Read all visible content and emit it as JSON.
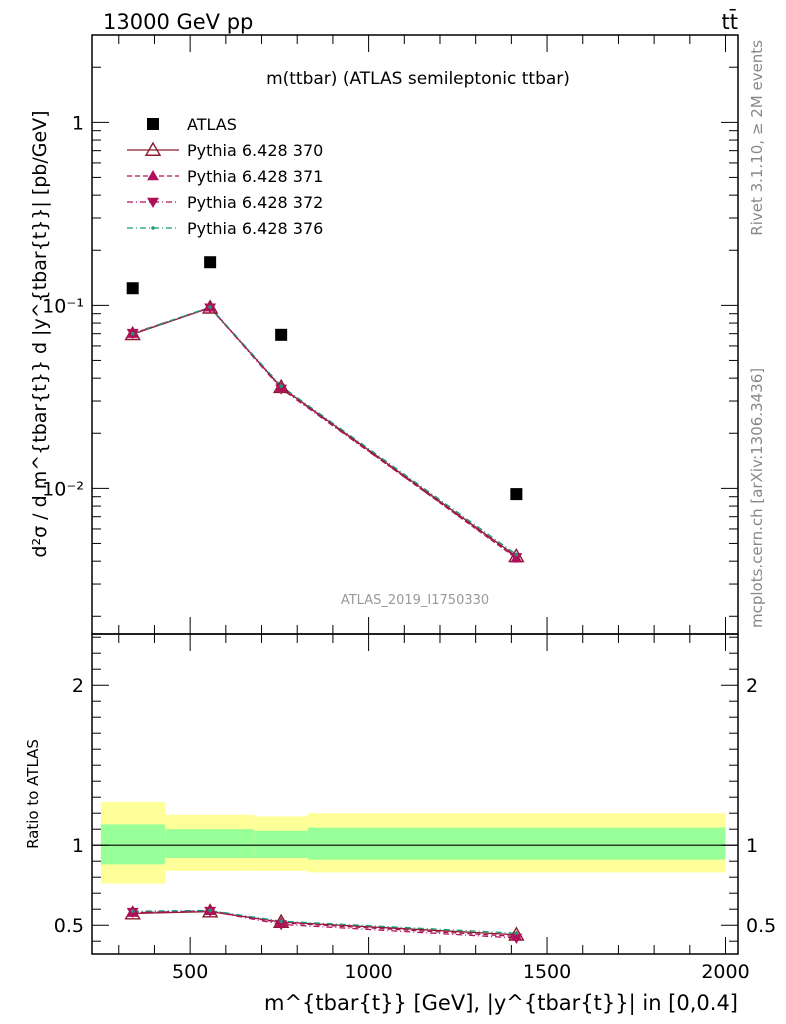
{
  "header": {
    "left": "13000 GeV pp",
    "right": "tt̄"
  },
  "side_labels": {
    "rivet": "Rivet 3.1.10, ≥ 2M events",
    "mcplots": "mcplots.cern.ch [arXiv:1306.3436]"
  },
  "main_plot": {
    "title": "m(ttbar) (ATLAS semileptonic ttbar)",
    "watermark": "ATLAS_2019_I1750330",
    "ylabel": "d²σ / d m^{tbar{t}} d |y^{tbar{t}}| [pb/GeV]",
    "yscale": "log",
    "ylim": [
      0.0016,
      3.0
    ],
    "y_tick_labels": [
      "1",
      "10⁻¹",
      "10⁻²"
    ]
  },
  "ratio_plot": {
    "ylabel": "Ratio to ATLAS",
    "ylim": [
      0.32,
      2.32
    ],
    "y_tick_labels": [
      "0.5",
      "1",
      "2"
    ]
  },
  "x_axis": {
    "label": "m^{tbar{t}} [GeV], |y^{tbar{t}}| in [0,0.4]",
    "xlim": [
      225,
      2035
    ],
    "tick_labels": [
      "500",
      "1000",
      "1500",
      "2000"
    ]
  },
  "legend": {
    "placement": "top-left",
    "entries": [
      {
        "label": "ATLAS"
      },
      {
        "label": "Pythia 6.428 370"
      },
      {
        "label": "Pythia 6.428 371"
      },
      {
        "label": "Pythia 6.428 372"
      },
      {
        "label": "Pythia 6.428 376"
      }
    ]
  },
  "chart_data": {
    "type": "scatter",
    "x_bins": [
      [
        250,
        430
      ],
      [
        430,
        680
      ],
      [
        680,
        830
      ],
      [
        830,
        2000
      ]
    ],
    "x": [
      339,
      556,
      755,
      1414
    ],
    "data": {
      "name": "ATLAS",
      "color": "#000000",
      "values": [
        0.124,
        0.172,
        0.069,
        0.0093
      ],
      "band_inner": [
        [
          0.88,
          1.13
        ],
        [
          0.92,
          1.1
        ],
        [
          0.92,
          1.09
        ],
        [
          0.91,
          1.11
        ]
      ],
      "band_outer": [
        [
          0.76,
          1.27
        ],
        [
          0.84,
          1.19
        ],
        [
          0.84,
          1.18
        ],
        [
          0.83,
          1.2
        ]
      ]
    },
    "series": [
      {
        "name": "Pythia 6.428 370",
        "color": "#8b1a2b",
        "line": "solid",
        "marker": "triangle-up-open",
        "values": [
          0.0695,
          0.097,
          0.0357,
          0.00425
        ],
        "ratio": [
          0.573,
          0.585,
          0.52,
          0.44
        ]
      },
      {
        "name": "Pythia 6.428 371",
        "color": "#b0105a",
        "line": "dashed",
        "marker": "triangle-up",
        "values": [
          0.07,
          0.0975,
          0.0355,
          0.00415
        ],
        "ratio": [
          0.578,
          0.59,
          0.515,
          0.43
        ]
      },
      {
        "name": "Pythia 6.428 372",
        "color": "#b0105a",
        "line": "dashdot",
        "marker": "triangle-down",
        "values": [
          0.0705,
          0.097,
          0.035,
          0.0042
        ],
        "ratio": [
          0.582,
          0.588,
          0.505,
          0.42
        ]
      },
      {
        "name": "Pythia 6.428 376",
        "color": "#1a9a7a",
        "line": "dashdot",
        "marker": "dot",
        "values": [
          0.07,
          0.0978,
          0.0362,
          0.00435
        ],
        "ratio": [
          0.588,
          0.592,
          0.525,
          0.45
        ]
      }
    ],
    "colors": {
      "band_inner": "#99ff99",
      "band_outer": "#ffff99"
    }
  }
}
